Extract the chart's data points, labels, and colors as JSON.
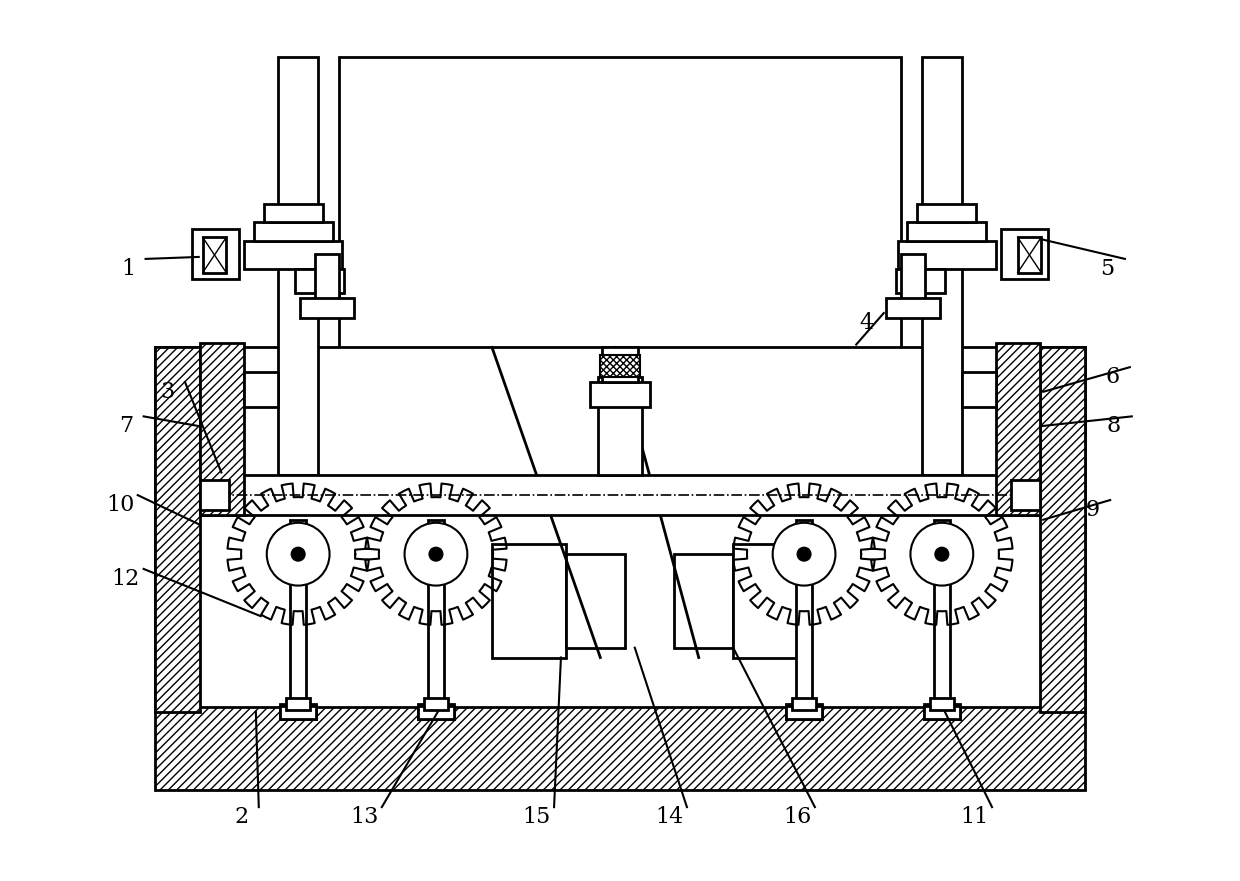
{
  "bg_color": "#ffffff",
  "line_color": "#000000",
  "fig_width": 12.4,
  "fig_height": 8.81,
  "lw": 2.0,
  "label_fontsize": 16
}
